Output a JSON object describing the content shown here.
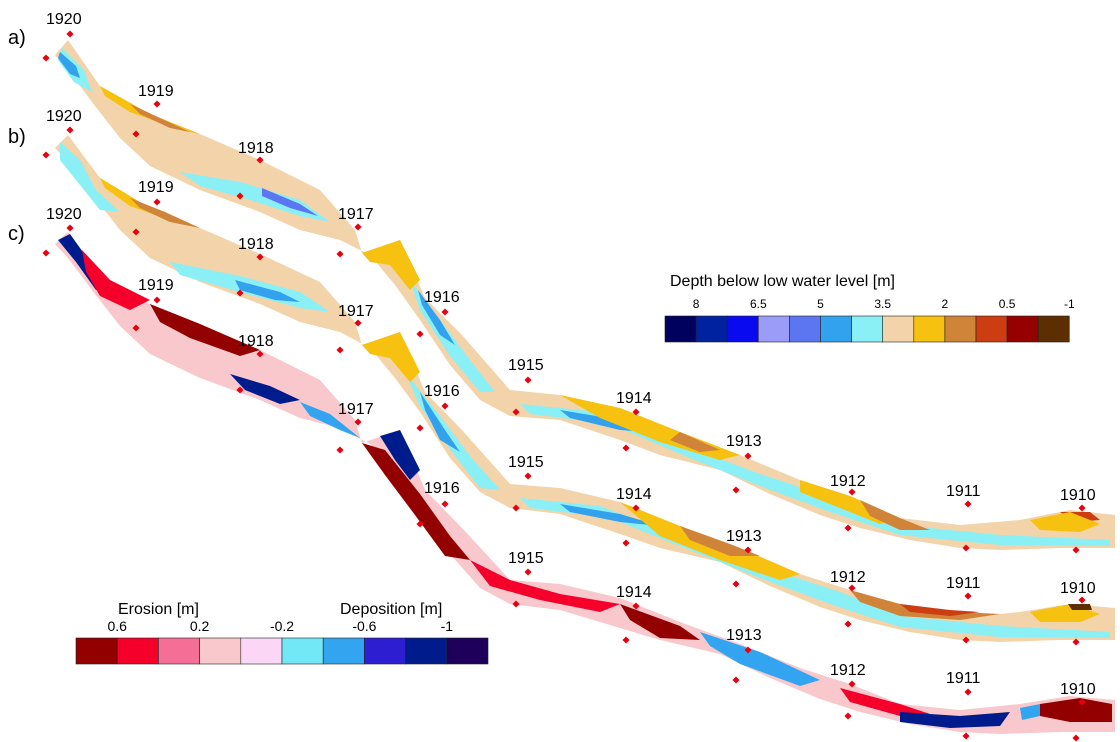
{
  "panels": [
    {
      "label": "a)",
      "variable": "depth"
    },
    {
      "label": "b)",
      "variable": "depth"
    },
    {
      "label": "c)",
      "variable": "erosion_deposition"
    }
  ],
  "river_km": [
    "1920",
    "1919",
    "1918",
    "1917",
    "1916",
    "1915",
    "1914",
    "1913",
    "1912",
    "1911",
    "1910"
  ],
  "depth_legend": {
    "title": "Depth below low water level [m]",
    "ticks": [
      "8",
      "6.5",
      "5",
      "3.5",
      "2",
      "0.5",
      "-1"
    ],
    "colors": [
      "#00005e",
      "#0022a0",
      "#0a0af0",
      "#9a9cf8",
      "#5c76f2",
      "#32a2ee",
      "#8af0f5",
      "#f3d3aa",
      "#f6c10f",
      "#d08439",
      "#cc3e12",
      "#950000",
      "#5d2e02"
    ]
  },
  "erosion_legend": {
    "erosion_title": "Erosion [m]",
    "deposition_title": "Deposition [m]",
    "ticks": [
      "0.6",
      "0.2",
      "-0.2",
      "-0.6",
      "-1"
    ],
    "colors": [
      "#920000",
      "#f5002a",
      "#f56e96",
      "#f9c8cc",
      "#fcd7f5",
      "#72e8f6",
      "#33a5f0",
      "#2e1ed2",
      "#001c8c",
      "#1e005a"
    ]
  },
  "marker_color": "#e8000e",
  "depth_fill_colors": {
    "base": "#f3d3aa",
    "shallow": "#f6c10f",
    "bank": "#d08439",
    "dark_bank": "#cc3e12",
    "channel": "#8af0f5",
    "deep": "#32a2ee",
    "deeper": "#5c76f2"
  },
  "erosion_fill_colors": {
    "base": "#f9c8cc",
    "erosion": "#f5002a",
    "strong_erosion": "#920000",
    "deposition": "#33a5f0",
    "strong_deposition": "#001c8c",
    "light": "#fcd7f5",
    "cyan": "#72e8f6"
  }
}
